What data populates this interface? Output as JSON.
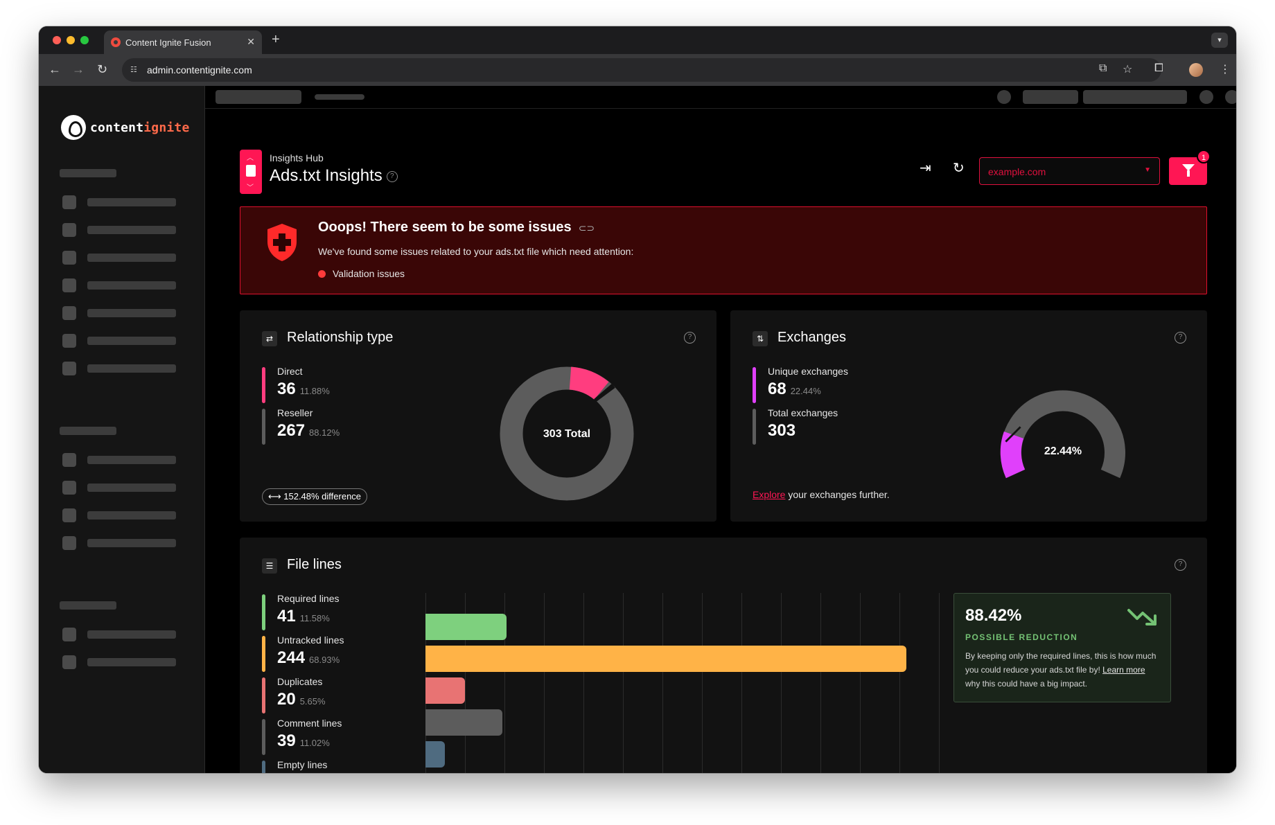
{
  "browser": {
    "tab_title": "Content Ignite Fusion",
    "url": "admin.contentignite.com"
  },
  "brand": {
    "logo_text_a": "content",
    "logo_text_b": "ignite",
    "accent": "#ff1654"
  },
  "header": {
    "eyebrow": "Insights Hub",
    "title": "Ads.txt Insights",
    "domain_select": "example.com",
    "filter_count": "1"
  },
  "alert": {
    "title": "Ooops! There seem to be some issues",
    "message": "We've found some issues related to your ads.txt file which need attention:",
    "items": [
      "Validation issues"
    ]
  },
  "relationship": {
    "title": "Relationship type",
    "direct_label": "Direct",
    "direct_value": "36",
    "direct_pct": "11.88%",
    "reseller_label": "Reseller",
    "reseller_value": "267",
    "reseller_pct": "88.12%",
    "difference": "152.48% difference",
    "donut_center": "303 Total",
    "colors": {
      "direct": "#ff3d7f",
      "reseller": "#5c5c5c"
    }
  },
  "exchanges": {
    "title": "Exchanges",
    "unique_label": "Unique exchanges",
    "unique_value": "68",
    "unique_pct": "22.44%",
    "total_label": "Total exchanges",
    "total_value": "303",
    "gauge_center": "22.44%",
    "explore_link": "Explore",
    "explore_rest": " your exchanges further.",
    "colors": {
      "unique": "#e040fb",
      "rest": "#5c5c5c"
    }
  },
  "file_lines": {
    "title": "File lines",
    "items": [
      {
        "label": "Required lines",
        "value": "41",
        "pct": "11.58%",
        "color": "#7ed07e"
      },
      {
        "label": "Untracked lines",
        "value": "244",
        "pct": "68.93%",
        "color": "#ffb347"
      },
      {
        "label": "Duplicates",
        "value": "20",
        "pct": "5.65%",
        "color": "#e87373"
      },
      {
        "label": "Comment lines",
        "value": "39",
        "pct": "11.02%",
        "color": "#5c5c5c"
      },
      {
        "label": "Empty lines",
        "value": "",
        "pct": "",
        "color": "#4f6b80"
      }
    ],
    "reduction": {
      "value": "88.42%",
      "label": "POSSIBLE REDUCTION",
      "desc": "By keeping only the required lines, this is how much you could reduce your ads.txt file by!",
      "learn_more": "Learn more",
      "desc_tail": " why this could have a big impact."
    }
  }
}
